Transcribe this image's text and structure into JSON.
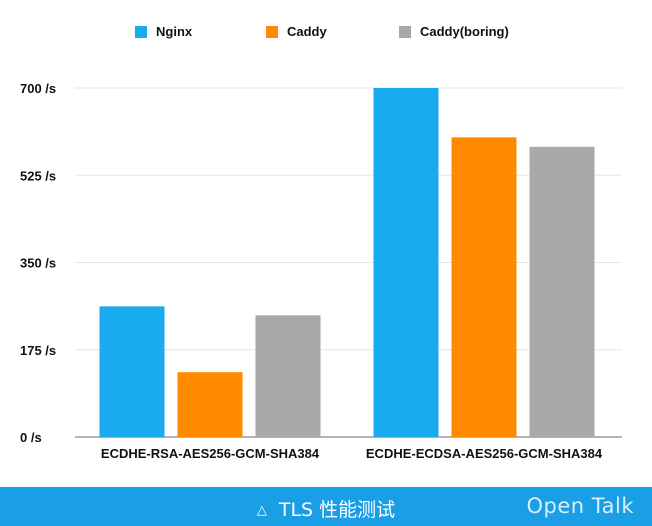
{
  "chart_data": {
    "type": "bar",
    "categories": [
      "ECDHE-RSA-AES256-GCM-SHA384",
      "ECDHE-ECDSA-AES256-GCM-SHA384"
    ],
    "series": [
      {
        "name": "Nginx",
        "color": "#1aabee",
        "values": [
          262,
          700
        ]
      },
      {
        "name": "Caddy",
        "color": "#ff8a00",
        "values": [
          130,
          601
        ]
      },
      {
        "name": "Caddy(boring)",
        "color": "#a9a9ab",
        "values": [
          244,
          582
        ]
      }
    ],
    "yticks": [
      "0 /s",
      "175 /s",
      "350 /s",
      "525 /s",
      "700 /s"
    ],
    "ytick_values": [
      0,
      175,
      350,
      525,
      700
    ],
    "ylim": [
      0,
      700
    ],
    "grid": true,
    "legend_position": "top"
  },
  "footer": {
    "icon": "triangle-outline-icon",
    "icon_glyph": "△",
    "title": "TLS 性能测试",
    "brand": "Open Talk",
    "color": "#1a9ee6"
  }
}
